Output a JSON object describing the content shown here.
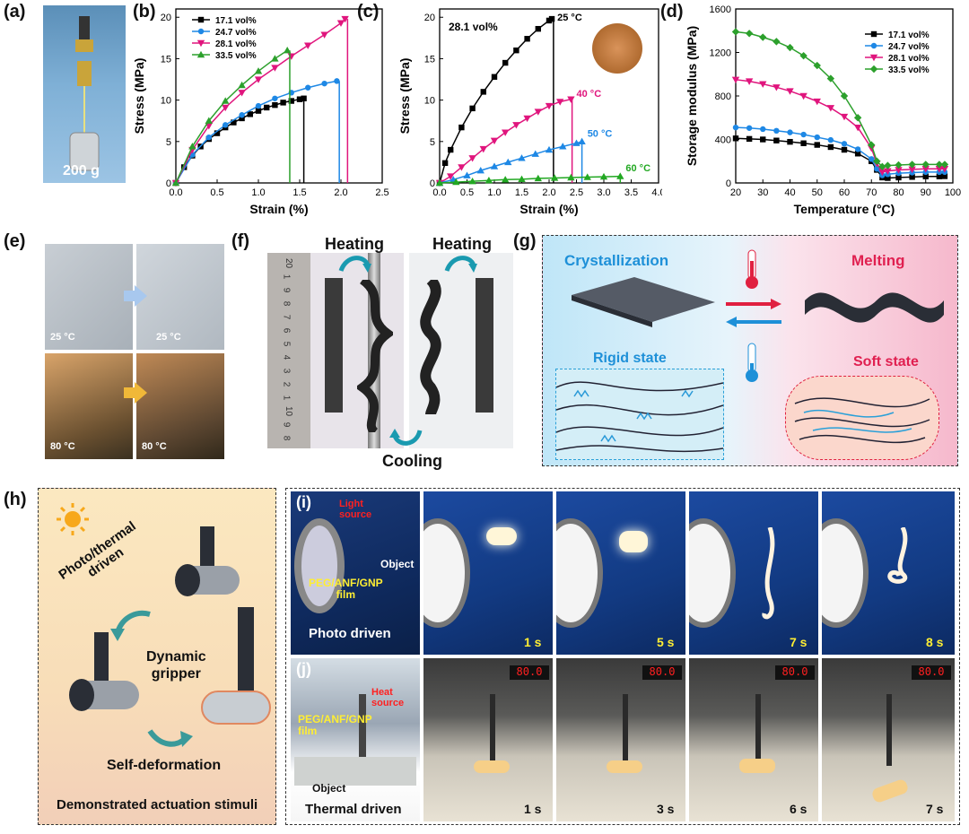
{
  "panel_labels": {
    "a": "(a)",
    "b": "(b)",
    "c": "(c)",
    "d": "(d)",
    "e": "(e)",
    "f": "(f)",
    "g": "(g)",
    "h": "(h)",
    "i": "(i)",
    "j": "(j)"
  },
  "panel_a": {
    "weight_label": "200 g"
  },
  "colors": {
    "s171": "#000000",
    "s247": "#1e88e5",
    "s281": "#e0157d",
    "s335": "#2ca02c",
    "green60": "#22a822"
  },
  "chart_data": [
    {
      "id": "b",
      "type": "line",
      "xlabel": "Strain (%)",
      "ylabel": "Stress (MPa)",
      "xlim": [
        0,
        2.5
      ],
      "ylim": [
        0,
        21
      ],
      "xticks": [
        "0.0",
        "0.5",
        "1.0",
        "1.5",
        "2.0",
        "2.5"
      ],
      "yticks": [
        "0",
        "5",
        "10",
        "15",
        "20"
      ],
      "legend_position": "top-left",
      "series": [
        {
          "name": "17.1 vol%",
          "color": "#000000",
          "marker": "square",
          "x": [
            0,
            0.1,
            0.2,
            0.3,
            0.4,
            0.5,
            0.6,
            0.7,
            0.8,
            0.9,
            1.0,
            1.1,
            1.2,
            1.3,
            1.4,
            1.5,
            1.55
          ],
          "y": [
            0,
            1.9,
            3.3,
            4.4,
            5.3,
            6.0,
            6.7,
            7.3,
            7.8,
            8.3,
            8.7,
            9.1,
            9.4,
            9.7,
            9.9,
            10.1,
            10.2
          ],
          "break_x": 1.55
        },
        {
          "name": "24.7 vol%",
          "color": "#1e88e5",
          "marker": "circle",
          "x": [
            0,
            0.2,
            0.4,
            0.6,
            0.8,
            1.0,
            1.2,
            1.4,
            1.6,
            1.8,
            1.95
          ],
          "y": [
            0,
            3.4,
            5.5,
            7.0,
            8.2,
            9.3,
            10.2,
            10.9,
            11.5,
            12.0,
            12.3
          ],
          "break_x": 1.98
        },
        {
          "name": "28.1 vol%",
          "color": "#e0157d",
          "marker": "triangle-down",
          "x": [
            0,
            0.2,
            0.4,
            0.6,
            0.8,
            1.0,
            1.2,
            1.4,
            1.6,
            1.8,
            2.0,
            2.05
          ],
          "y": [
            0,
            4.0,
            6.9,
            9.1,
            10.9,
            12.5,
            13.9,
            15.3,
            16.6,
            17.9,
            19.3,
            19.8
          ],
          "break_x": 2.08
        },
        {
          "name": "33.5 vol%",
          "color": "#2ca02c",
          "marker": "triangle-up",
          "x": [
            0,
            0.2,
            0.4,
            0.6,
            0.8,
            1.0,
            1.2,
            1.35
          ],
          "y": [
            0,
            4.4,
            7.5,
            9.9,
            11.8,
            13.5,
            15.0,
            16.0
          ],
          "break_x": 1.38
        }
      ]
    },
    {
      "id": "c",
      "type": "line",
      "xlabel": "Strain (%)",
      "ylabel": "Stress (MPa)",
      "xlim": [
        0,
        4.0
      ],
      "ylim": [
        0,
        21
      ],
      "xticks": [
        "0.0",
        "0.5",
        "1.0",
        "1.5",
        "2.0",
        "2.5",
        "3.0",
        "3.5",
        "4.0"
      ],
      "yticks": [
        "0",
        "5",
        "10",
        "15",
        "20"
      ],
      "annotation": "28.1 vol%",
      "series": [
        {
          "name": "25 °C",
          "color": "#000000",
          "marker": "square",
          "x": [
            0,
            0.1,
            0.2,
            0.4,
            0.6,
            0.8,
            1.0,
            1.2,
            1.4,
            1.6,
            1.8,
            2.0,
            2.05
          ],
          "y": [
            0,
            2.4,
            4.0,
            6.7,
            9.0,
            11.0,
            12.8,
            14.5,
            16.0,
            17.4,
            18.6,
            19.6,
            19.8
          ],
          "break_x": 2.08
        },
        {
          "name": "40 °C",
          "color": "#e0157d",
          "marker": "triangle-down",
          "x": [
            0,
            0.2,
            0.4,
            0.6,
            0.8,
            1.0,
            1.2,
            1.4,
            1.6,
            1.8,
            2.0,
            2.2,
            2.4
          ],
          "y": [
            0,
            0.8,
            1.9,
            3.0,
            4.1,
            5.1,
            6.1,
            7.0,
            7.8,
            8.6,
            9.3,
            9.8,
            10.1
          ],
          "break_x": 2.42
        },
        {
          "name": "50 °C",
          "color": "#1e88e5",
          "marker": "triangle-up",
          "x": [
            0,
            0.25,
            0.5,
            0.75,
            1.0,
            1.25,
            1.5,
            1.75,
            2.0,
            2.25,
            2.5,
            2.6
          ],
          "y": [
            0,
            0.4,
            0.9,
            1.5,
            2.0,
            2.5,
            3.0,
            3.5,
            4.0,
            4.4,
            4.8,
            5.0
          ],
          "break_x": 2.6
        },
        {
          "name": "60 °C",
          "color": "#22a822",
          "marker": "triangle-up",
          "x": [
            0,
            0.3,
            0.6,
            0.9,
            1.2,
            1.5,
            1.8,
            2.1,
            2.4,
            2.7,
            3.0,
            3.3
          ],
          "y": [
            0,
            0.1,
            0.2,
            0.3,
            0.4,
            0.45,
            0.55,
            0.6,
            0.65,
            0.7,
            0.75,
            0.8
          ],
          "break_x": 3.3
        }
      ]
    },
    {
      "id": "d",
      "type": "line",
      "xlabel": "Temperature (°C)",
      "ylabel": "Storage modulus (MPa)",
      "xlim": [
        20,
        100
      ],
      "ylim": [
        0,
        1600
      ],
      "xticks": [
        "20",
        "30",
        "40",
        "50",
        "60",
        "70",
        "80",
        "90",
        "100"
      ],
      "yticks": [
        "0",
        "400",
        "800",
        "1200",
        "1600"
      ],
      "legend_position": "top-right",
      "series": [
        {
          "name": "17.1 vol%",
          "color": "#000000",
          "marker": "square",
          "x": [
            20,
            25,
            30,
            35,
            40,
            45,
            50,
            55,
            60,
            65,
            70,
            72,
            74,
            76,
            80,
            85,
            90,
            95,
            97
          ],
          "y": [
            410,
            405,
            400,
            390,
            378,
            365,
            350,
            330,
            305,
            270,
            200,
            120,
            50,
            45,
            50,
            55,
            60,
            60,
            62
          ]
        },
        {
          "name": "24.7 vol%",
          "color": "#1e88e5",
          "marker": "circle",
          "x": [
            20,
            25,
            30,
            35,
            40,
            45,
            50,
            55,
            60,
            65,
            70,
            72,
            74,
            76,
            80,
            85,
            90,
            95,
            97
          ],
          "y": [
            510,
            505,
            495,
            480,
            465,
            445,
            420,
            395,
            360,
            310,
            220,
            130,
            70,
            80,
            90,
            95,
            100,
            100,
            100
          ]
        },
        {
          "name": "28.1 vol%",
          "color": "#e0157d",
          "marker": "triangle-down",
          "x": [
            20,
            25,
            30,
            35,
            40,
            45,
            50,
            55,
            60,
            65,
            70,
            72,
            74,
            76,
            80,
            85,
            90,
            95,
            97
          ],
          "y": [
            950,
            935,
            910,
            880,
            845,
            800,
            750,
            690,
            610,
            510,
            320,
            180,
            100,
            110,
            120,
            125,
            130,
            130,
            130
          ]
        },
        {
          "name": "33.5 vol%",
          "color": "#2ca02c",
          "marker": "diamond",
          "x": [
            20,
            25,
            30,
            35,
            40,
            45,
            50,
            55,
            60,
            65,
            70,
            72,
            74,
            76,
            80,
            85,
            90,
            95,
            97
          ],
          "y": [
            1390,
            1375,
            1340,
            1300,
            1245,
            1170,
            1080,
            960,
            800,
            600,
            350,
            200,
            150,
            160,
            165,
            170,
            170,
            170,
            170
          ]
        }
      ]
    }
  ],
  "panel_c": {
    "annotation": "28.1 vol%",
    "labels": {
      "t25": "25 °C",
      "t40": "40 °C",
      "t50": "50 °C",
      "t60": "60 °C"
    }
  },
  "panel_e": {
    "t1": "25 °C",
    "t2": "25 °C",
    "t3": "80 °C",
    "t4": "80 °C"
  },
  "panel_f": {
    "heating1": "Heating",
    "heating2": "Heating",
    "cooling": "Cooling",
    "ruler_numbers": [
      "20",
      "1",
      "9",
      "8",
      "7",
      "6",
      "5",
      "4",
      "3",
      "2",
      "1",
      "10",
      "9",
      "8"
    ]
  },
  "panel_g": {
    "crystallization": "Crystallization",
    "melting": "Melting",
    "rigid": "Rigid state",
    "soft": "Soft state"
  },
  "panel_h": {
    "photo_thermal": "Photo/thermal\ndriven",
    "dynamic": "Dynamic\ngripper",
    "self_def": "Self-deformation",
    "demo": "Demonstrated actuation stimuli"
  },
  "panel_i": {
    "light_source": "Light\nsource",
    "object": "Object",
    "film": "PEG/ANF/GNP\nfilm",
    "title": "Photo driven",
    "times": [
      "1 s",
      "5 s",
      "7 s",
      "8 s"
    ]
  },
  "panel_j": {
    "heat_source": "Heat\nsource",
    "film": "PEG/ANF/GNP\nfilm",
    "object": "Object",
    "title": "Thermal driven",
    "times": [
      "1 s",
      "3 s",
      "6 s",
      "7 s"
    ],
    "display": "80.0"
  }
}
